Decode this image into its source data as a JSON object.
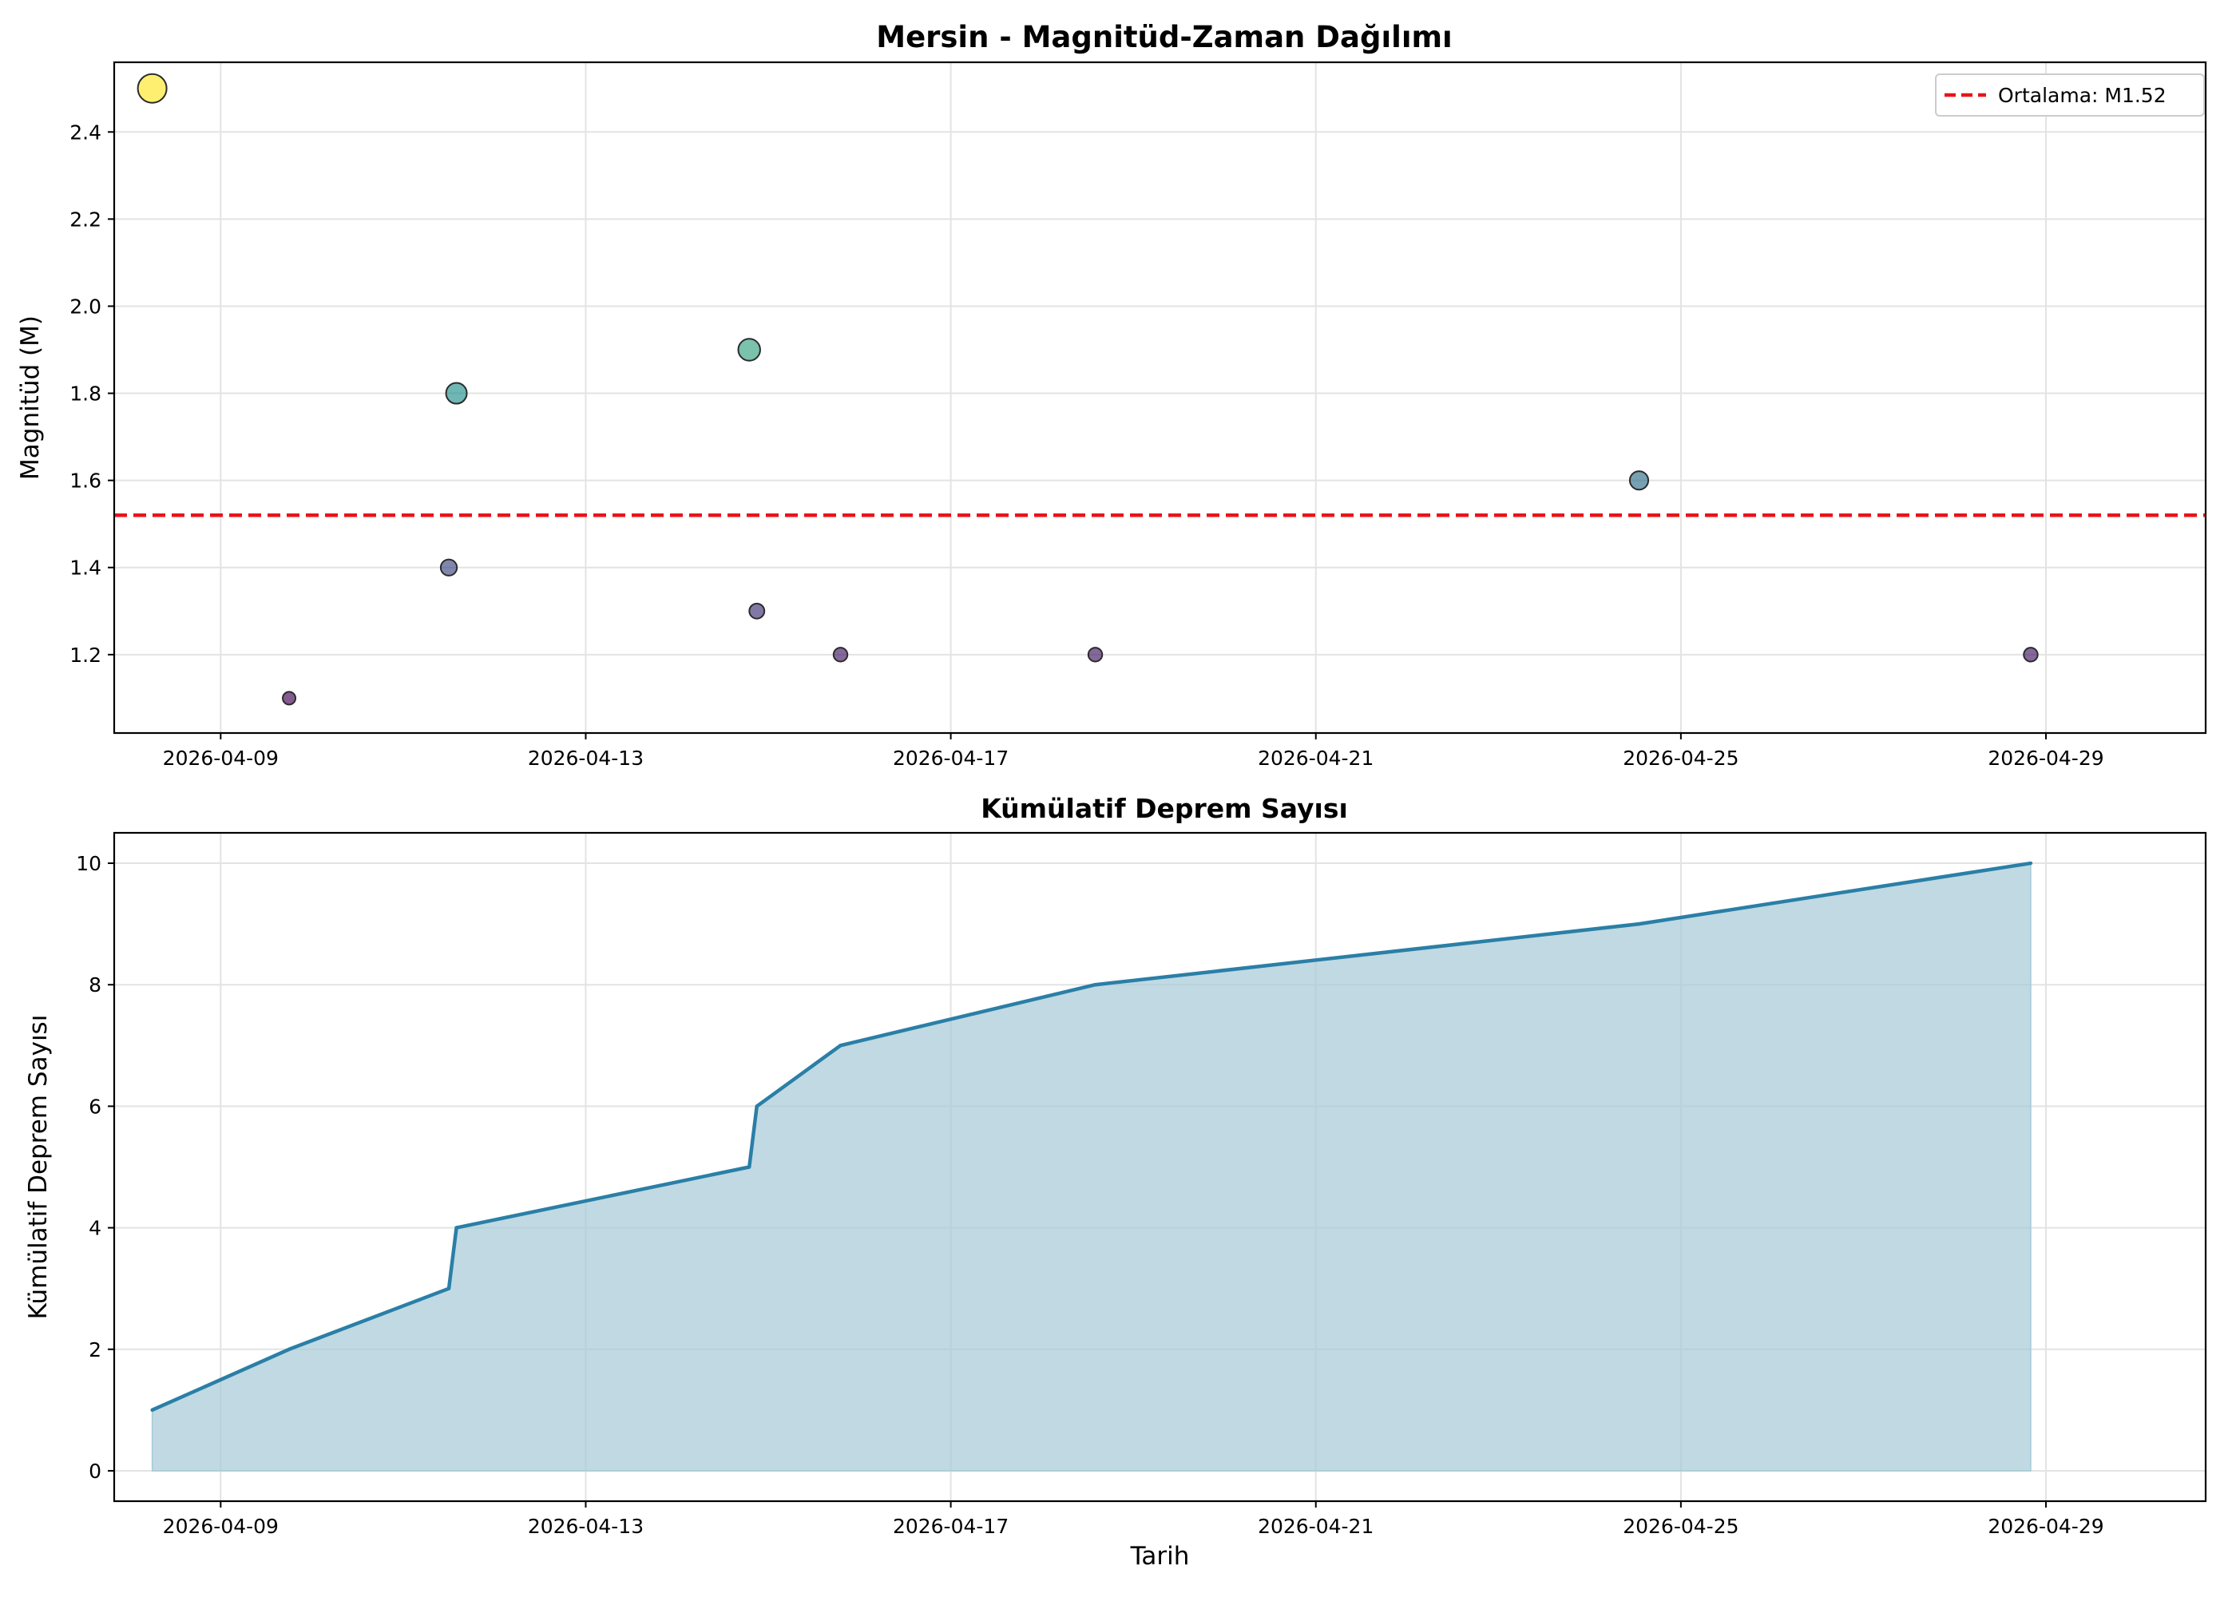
{
  "chart_data": [
    {
      "type": "scatter",
      "title": "Mersin - Magnitüd-Zaman Dağılımı",
      "xlabel": "",
      "ylabel": "Magnitüd (M)",
      "xlim": [
        "2026-04-07T20:00",
        "2026-04-30T18:00"
      ],
      "ylim": [
        1.02,
        2.56
      ],
      "x_ticks": [
        "2026-04-09",
        "2026-04-13",
        "2026-04-17",
        "2026-04-21",
        "2026-04-25",
        "2026-04-29"
      ],
      "y_ticks": [
        1.2,
        1.4,
        1.6,
        1.8,
        2.0,
        2.2,
        2.4
      ],
      "y_tick_labels": [
        "1.2",
        "1.4",
        "1.6",
        "1.8",
        "2.0",
        "2.2",
        "2.4"
      ],
      "grid": true,
      "colormap": "viridis",
      "points": [
        {
          "x": "2026-04-08T06:00",
          "y": 2.5
        },
        {
          "x": "2026-04-09T18:00",
          "y": 1.1
        },
        {
          "x": "2026-04-11T12:00",
          "y": 1.4
        },
        {
          "x": "2026-04-11T14:00",
          "y": 1.8
        },
        {
          "x": "2026-04-14T19:00",
          "y": 1.9
        },
        {
          "x": "2026-04-14T21:00",
          "y": 1.3
        },
        {
          "x": "2026-04-15T19:00",
          "y": 1.2
        },
        {
          "x": "2026-04-18T14:00",
          "y": 1.2
        },
        {
          "x": "2026-04-24T13:00",
          "y": 1.6
        },
        {
          "x": "2026-04-28T20:00",
          "y": 1.2
        }
      ],
      "mean_line": {
        "value": 1.52,
        "color": "#e8141a",
        "style": "dashed"
      },
      "legend": {
        "position": "top-right",
        "entries": [
          "Ortalama: M1.52"
        ]
      }
    },
    {
      "type": "area",
      "title": "Kümülatif Deprem Sayısı",
      "xlabel": "Tarih",
      "ylabel": "Kümülatif Deprem Sayısı",
      "xlim": [
        "2026-04-07T20:00",
        "2026-04-30T18:00"
      ],
      "ylim": [
        -0.5,
        10.5
      ],
      "x_ticks": [
        "2026-04-09",
        "2026-04-13",
        "2026-04-17",
        "2026-04-21",
        "2026-04-25",
        "2026-04-29"
      ],
      "y_ticks": [
        0,
        2,
        4,
        6,
        8,
        10
      ],
      "y_tick_labels": [
        "0",
        "2",
        "4",
        "6",
        "8",
        "10"
      ],
      "grid": true,
      "line_color": "#2a7fa6",
      "fill_color": "#a7cad8",
      "points": [
        {
          "x": "2026-04-08T06:00",
          "y": 1
        },
        {
          "x": "2026-04-09T18:00",
          "y": 2
        },
        {
          "x": "2026-04-11T12:00",
          "y": 3
        },
        {
          "x": "2026-04-11T14:00",
          "y": 4
        },
        {
          "x": "2026-04-14T19:00",
          "y": 5
        },
        {
          "x": "2026-04-14T21:00",
          "y": 6
        },
        {
          "x": "2026-04-15T19:00",
          "y": 7
        },
        {
          "x": "2026-04-18T14:00",
          "y": 8
        },
        {
          "x": "2026-04-24T13:00",
          "y": 9
        },
        {
          "x": "2026-04-28T20:00",
          "y": 10
        }
      ]
    }
  ]
}
